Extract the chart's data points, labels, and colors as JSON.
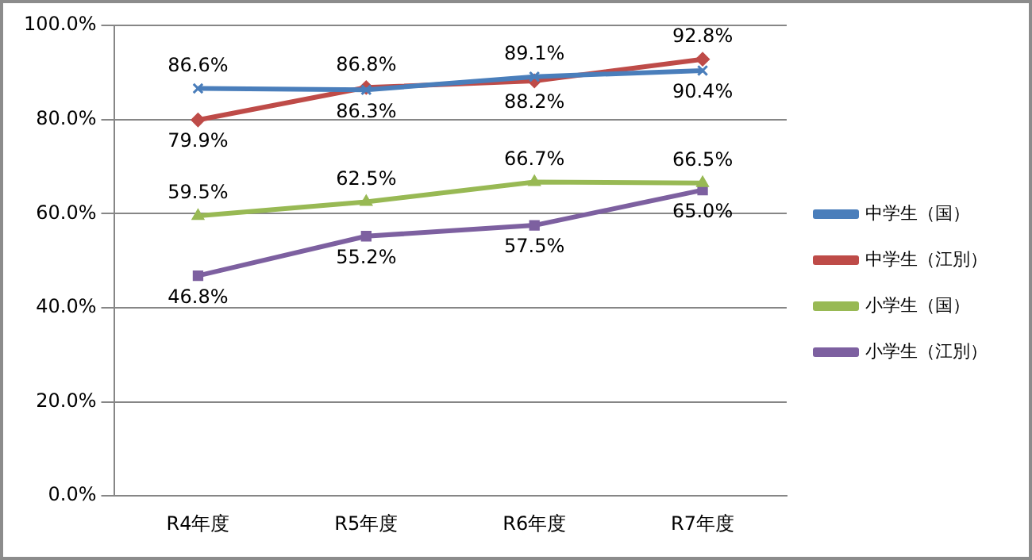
{
  "chart_data": {
    "type": "line",
    "categories": [
      "R4年度",
      "R5年度",
      "R6年度",
      "R7年度"
    ],
    "series": [
      {
        "name": "中学生（国）",
        "color": "#4a7ebb",
        "marker": "cross",
        "values": [
          86.6,
          86.3,
          89.1,
          90.4
        ],
        "value_labels": [
          "86.6%",
          "86.3%",
          "89.1%",
          "90.4%"
        ]
      },
      {
        "name": "中学生（江別）",
        "color": "#be4b48",
        "marker": "diamond",
        "values": [
          79.9,
          86.8,
          88.2,
          92.8
        ],
        "value_labels": [
          "79.9%",
          "86.8%",
          "88.2%",
          "92.8%"
        ]
      },
      {
        "name": "小学生（国）",
        "color": "#98b954",
        "marker": "triangle",
        "values": [
          59.5,
          62.5,
          66.7,
          66.5
        ],
        "value_labels": [
          "59.5%",
          "62.5%",
          "66.7%",
          "66.5%"
        ]
      },
      {
        "name": "小学生（江別）",
        "color": "#7d60a0",
        "marker": "square",
        "values": [
          46.8,
          55.2,
          57.5,
          65.0
        ],
        "value_labels": [
          "46.8%",
          "55.2%",
          "57.5%",
          "65.0%"
        ]
      }
    ],
    "ylim": [
      0,
      100
    ],
    "yticks": [
      {
        "value": 0,
        "label": "0.0%"
      },
      {
        "value": 20,
        "label": "20.0%"
      },
      {
        "value": 40,
        "label": "40.0%"
      },
      {
        "value": 60,
        "label": "60.0%"
      },
      {
        "value": 80,
        "label": "80.0%"
      },
      {
        "value": 100,
        "label": "100.0%"
      }
    ],
    "grid": "y",
    "legend": "right"
  }
}
